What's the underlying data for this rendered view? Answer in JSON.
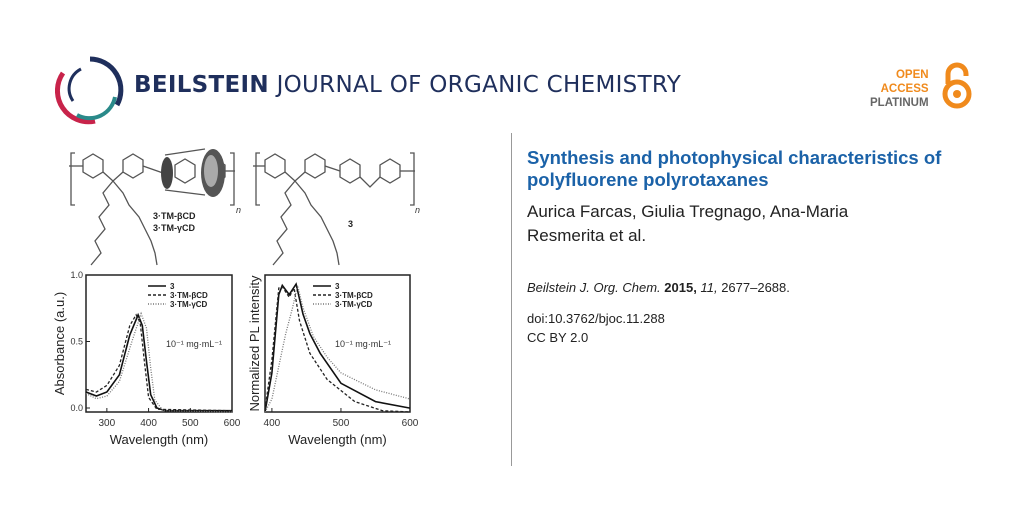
{
  "header": {
    "journal_bold": "BEILSTEIN",
    "journal_rest": "JOURNAL OF ORGANIC CHEMISTRY",
    "open_access": [
      "OPEN",
      "ACCESS",
      "PLATINUM"
    ],
    "colors": {
      "brand_navy": "#1f2f5c",
      "brand_red": "#c8234a",
      "brand_teal": "#2a8a8a",
      "oa_orange": "#f08a1c"
    }
  },
  "article": {
    "title": "Synthesis and photophysical characteristics of polyfluorene polyrotaxanes",
    "authors": "Aurica Farcas, Giulia Tregnago, Ana-Maria Resmerita et al.",
    "journal_abbrev": "Beilstein J. Org. Chem.",
    "year": "2015,",
    "volume": "11,",
    "pages": "2677–2688.",
    "doi": "doi:10.3762/bjoc.11.288",
    "license": "CC BY 2.0",
    "title_color": "#1b62a8"
  },
  "graphical_abstract": {
    "label_rotaxane_1": "3·TM-βCD",
    "label_rotaxane_2": "3·TM-γCD",
    "label_polymer": "3",
    "repeat_n": "n"
  },
  "chart_data": [
    {
      "type": "line",
      "xlabel": "Wavelength (nm)",
      "ylabel": "Absorbance (a.u.)",
      "xlim": [
        250,
        600
      ],
      "ylim": [
        -0.03,
        1.0
      ],
      "xticks": [
        300,
        400,
        500,
        600
      ],
      "yticks": [
        "0.0",
        "0.5",
        "1.0"
      ],
      "ytick_values": [
        0,
        0.5,
        1.0
      ],
      "annotation": "10⁻¹ mg·mL⁻¹",
      "legend": "top-right",
      "series": [
        {
          "name": "3",
          "style": "solid",
          "x": [
            250,
            275,
            300,
            330,
            355,
            375,
            385,
            395,
            405,
            420,
            440,
            600
          ],
          "y": [
            0.12,
            0.09,
            0.12,
            0.25,
            0.55,
            0.7,
            0.62,
            0.35,
            0.1,
            0.0,
            -0.02,
            -0.02
          ]
        },
        {
          "name": "3·TM-βCD",
          "style": "dashed",
          "x": [
            250,
            275,
            300,
            330,
            355,
            370,
            380,
            390,
            400,
            420,
            600
          ],
          "y": [
            0.14,
            0.12,
            0.17,
            0.32,
            0.62,
            0.7,
            0.64,
            0.35,
            0.08,
            -0.01,
            -0.02
          ]
        },
        {
          "name": "3·TM-γCD",
          "style": "dotted",
          "x": [
            250,
            275,
            300,
            330,
            360,
            382,
            395,
            405,
            415,
            435,
            600
          ],
          "y": [
            0.11,
            0.07,
            0.09,
            0.2,
            0.5,
            0.71,
            0.6,
            0.3,
            0.06,
            -0.02,
            -0.03
          ]
        }
      ]
    },
    {
      "type": "line",
      "xlabel": "Wavelength (nm)",
      "ylabel": "Normalized PL intensity",
      "xlim": [
        390,
        600
      ],
      "ylim": [
        0,
        1.05
      ],
      "xticks": [
        400,
        500,
        600
      ],
      "annotation": "10⁻¹ mg·mL⁻¹",
      "legend": "top-right",
      "series": [
        {
          "name": "3",
          "style": "solid",
          "x": [
            390,
            400,
            410,
            415,
            425,
            435,
            445,
            455,
            470,
            500,
            550,
            600
          ],
          "y": [
            0,
            0.3,
            0.9,
            0.97,
            0.9,
            0.98,
            0.75,
            0.6,
            0.45,
            0.22,
            0.08,
            0.03
          ]
        },
        {
          "name": "3·TM-βCD",
          "style": "dashed",
          "x": [
            390,
            400,
            410,
            415,
            425,
            432,
            440,
            455,
            480,
            520,
            560,
            600
          ],
          "y": [
            0.02,
            0.4,
            0.95,
            0.96,
            0.88,
            0.95,
            0.7,
            0.45,
            0.25,
            0.08,
            0.01,
            0
          ]
        },
        {
          "name": "3·TM-γCD",
          "style": "dotted",
          "x": [
            390,
            400,
            420,
            430,
            437,
            445,
            460,
            480,
            500,
            550,
            600
          ],
          "y": [
            0,
            0.1,
            0.6,
            0.8,
            0.97,
            0.8,
            0.58,
            0.42,
            0.3,
            0.17,
            0.1
          ]
        }
      ]
    }
  ]
}
